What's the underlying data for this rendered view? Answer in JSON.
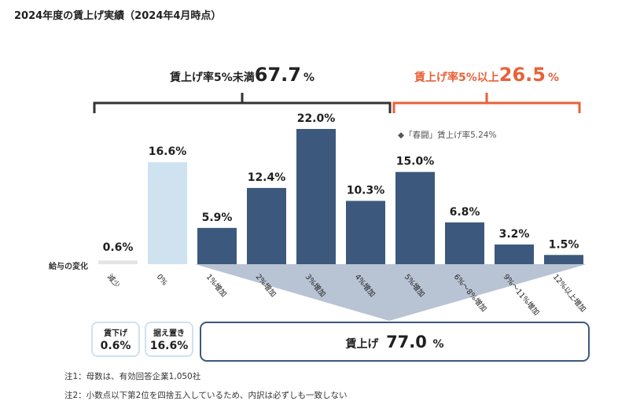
{
  "title": "2024年度の賃上げ実績（2024年4月時点）",
  "chart_data": {
    "type": "bar",
    "title": "2024年度の賃上げ実績（2024年4月時点）",
    "ylabel": "給与の変化",
    "ylim": [
      0,
      22
    ],
    "categories": [
      "減少",
      "0%",
      "1%増加",
      "2%増加",
      "3%増加",
      "4%増加",
      "5%増加",
      "6%〜8%増加",
      "9%〜11%増加",
      "12%以上増加"
    ],
    "values": [
      0.6,
      16.6,
      5.9,
      12.4,
      22.0,
      10.3,
      15.0,
      6.8,
      3.2,
      1.5
    ],
    "value_labels": [
      "0.6%",
      "16.6%",
      "5.9%",
      "12.4%",
      "22.0%",
      "10.3%",
      "15.0%",
      "6.8%",
      "3.2%",
      "1.5%"
    ],
    "bar_groups": [
      "decrease",
      "zero",
      "raise",
      "raise",
      "raise",
      "raise",
      "raise",
      "raise",
      "raise",
      "raise"
    ],
    "colors": {
      "decrease": "#e4e4e4",
      "zero": "#cfe2ef",
      "raise": "#3c597d",
      "accent": "#e8623a",
      "dark": "#333333",
      "funnel": "#b8c3d3"
    },
    "brackets": {
      "under5": {
        "label": "賃上げ率5%未満",
        "value": "67.7",
        "unit": "%"
      },
      "over5": {
        "label": "賃上げ率5%以上",
        "value": "26.5",
        "unit": "%"
      }
    },
    "annotation": "◆「春闘」賃上げ率5.24%",
    "summary": {
      "decrease": {
        "label": "賃下げ",
        "value": "0.6%"
      },
      "zero": {
        "label": "据え置き",
        "value": "16.6%"
      },
      "raise": {
        "label": "賃上げ",
        "value": "77.0",
        "unit": "%"
      }
    }
  },
  "notes": [
    "注1：母数は、有効回答企業1,050社",
    "注2：小数点以下第2位を四捨五入しているため、内訳は必ずしも一致しない"
  ]
}
